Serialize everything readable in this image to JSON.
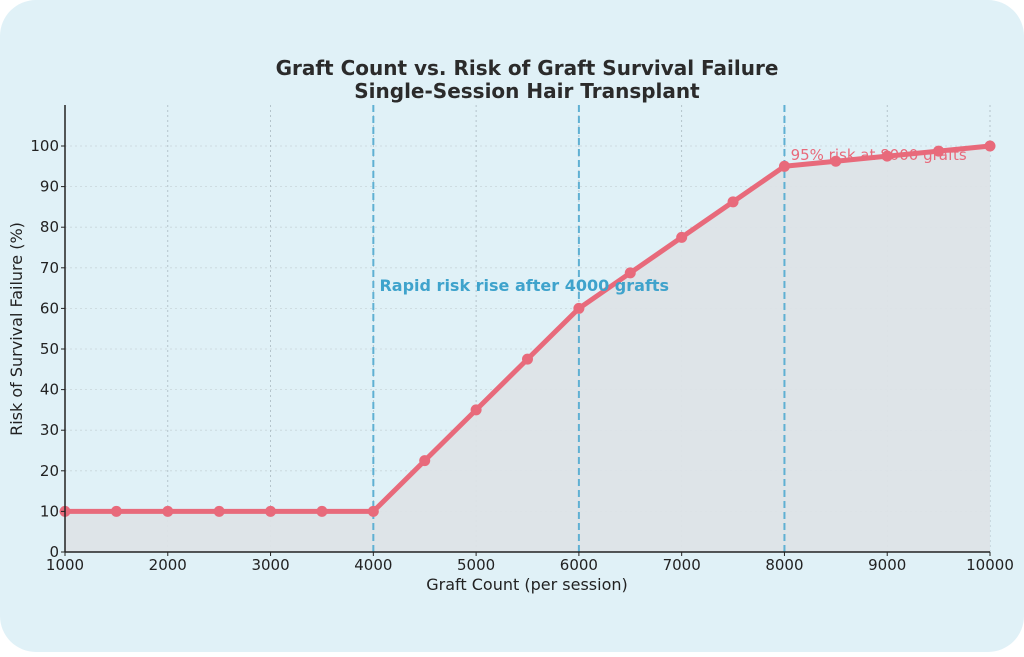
{
  "chart_data": {
    "type": "line",
    "title": "Graft Count vs. Risk of Graft Survival Failure",
    "subtitle": "Single-Session Hair Transplant",
    "xlabel": "Graft Count (per session)",
    "ylabel": "Risk of Survival Failure (%)",
    "xlim": [
      1000,
      10000
    ],
    "ylim": [
      0,
      110
    ],
    "x_ticks": [
      1000,
      2000,
      3000,
      4000,
      5000,
      6000,
      7000,
      8000,
      9000,
      10000
    ],
    "y_ticks": [
      0,
      10,
      20,
      30,
      40,
      50,
      60,
      70,
      80,
      90,
      100
    ],
    "grid": true,
    "fill_under_curve": true,
    "x": [
      1000,
      1500,
      2000,
      2500,
      3000,
      3500,
      4000,
      4500,
      5000,
      5500,
      6000,
      6500,
      7000,
      7500,
      8000,
      8500,
      9000,
      9500,
      10000
    ],
    "series": [
      {
        "name": "Risk of Survival Failure",
        "color": "#e86a7b",
        "values": [
          10,
          10,
          10,
          10,
          10,
          10,
          10,
          22.5,
          35,
          47.5,
          60,
          68.75,
          77.5,
          86.25,
          95,
          96.25,
          97.5,
          98.75,
          100
        ]
      }
    ],
    "vertical_lines": [
      {
        "x": 4000,
        "style": "dashed",
        "color": "#5fb0d3"
      },
      {
        "x": 6000,
        "style": "dashed",
        "color": "#5fb0d3"
      },
      {
        "x": 8000,
        "style": "dashed",
        "color": "#5fb0d3"
      }
    ],
    "annotations": [
      {
        "text": "Rapid risk rise after 4000 grafts",
        "x": 4050,
        "y": 64,
        "color": "#3fa3cc"
      },
      {
        "text": "95% risk at 8000 grafts",
        "x": 8050,
        "y": 97,
        "color": "#e86a7b"
      }
    ]
  },
  "colors": {
    "background": "#e0f1f7",
    "line": "#e86a7b",
    "fill": "#dde3e7",
    "vline": "#5fb0d3",
    "annotation_blue": "#3fa3cc"
  }
}
